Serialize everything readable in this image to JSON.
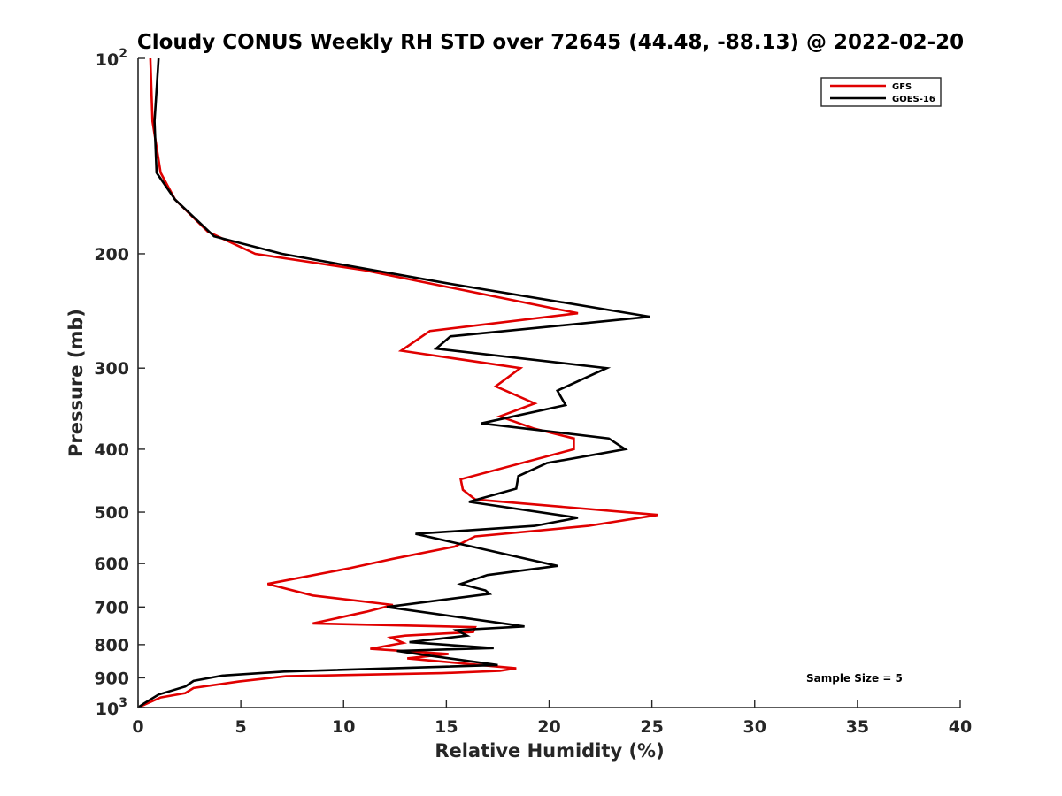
{
  "chart_data": {
    "type": "line",
    "title": "Cloudy CONUS Weekly RH STD over 72645 (44.48, -88.13) @ 2022-02-20",
    "xlabel": "Relative Humidity (%)",
    "ylabel": "Pressure (mb)",
    "xlim": [
      0,
      40
    ],
    "ylim": [
      100,
      1000
    ],
    "y_scale": "log",
    "y_reversed": true,
    "grid": false,
    "legend_position": "top-right",
    "x_ticks": [
      "0",
      "5",
      "10",
      "15",
      "20",
      "25",
      "30",
      "35",
      "40"
    ],
    "y_ticks": [
      {
        "value": 100,
        "base": "10",
        "exp": "2"
      },
      {
        "value": 200,
        "label": "200"
      },
      {
        "value": 300,
        "label": "300"
      },
      {
        "value": 400,
        "label": "400"
      },
      {
        "value": 500,
        "label": "500"
      },
      {
        "value": 600,
        "label": "600"
      },
      {
        "value": 700,
        "label": "700"
      },
      {
        "value": 800,
        "label": "800"
      },
      {
        "value": 900,
        "label": "900"
      },
      {
        "value": 1000,
        "base": "10",
        "exp": "3"
      }
    ],
    "annotation": "Sample Size = 5",
    "series": [
      {
        "name": "GFS",
        "color": "#e00000",
        "points": [
          [
            0.6,
            100
          ],
          [
            0.7,
            125
          ],
          [
            1.1,
            150
          ],
          [
            1.8,
            165
          ],
          [
            3.4,
            185
          ],
          [
            5.7,
            200
          ],
          [
            11.0,
            212
          ],
          [
            21.4,
            247
          ],
          [
            14.2,
            263
          ],
          [
            12.8,
            282
          ],
          [
            18.6,
            300
          ],
          [
            17.4,
            320
          ],
          [
            19.3,
            340
          ],
          [
            17.6,
            356
          ],
          [
            19.3,
            372
          ],
          [
            21.2,
            385
          ],
          [
            21.2,
            400
          ],
          [
            15.7,
            445
          ],
          [
            15.8,
            462
          ],
          [
            16.4,
            478
          ],
          [
            25.3,
            505
          ],
          [
            21.9,
            525
          ],
          [
            16.4,
            545
          ],
          [
            15.4,
            565
          ],
          [
            12.4,
            590
          ],
          [
            10.3,
            610
          ],
          [
            6.3,
            645
          ],
          [
            8.5,
            672
          ],
          [
            12.4,
            695
          ],
          [
            11.1,
            712
          ],
          [
            8.5,
            742
          ],
          [
            16.4,
            752
          ],
          [
            16.3,
            765
          ],
          [
            13.0,
            775
          ],
          [
            12.3,
            780
          ],
          [
            12.9,
            795
          ],
          [
            11.3,
            812
          ],
          [
            15.1,
            827
          ],
          [
            13.1,
            840
          ],
          [
            14.5,
            848
          ],
          [
            18.4,
            870
          ],
          [
            17.6,
            878
          ],
          [
            14.8,
            885
          ],
          [
            7.2,
            895
          ],
          [
            4.9,
            912
          ],
          [
            2.7,
            933
          ],
          [
            2.3,
            950
          ],
          [
            1.1,
            965
          ],
          [
            0,
            1000
          ]
        ]
      },
      {
        "name": "GOES-16",
        "color": "#000000",
        "points": [
          [
            1.0,
            100
          ],
          [
            0.8,
            125
          ],
          [
            0.9,
            150
          ],
          [
            1.8,
            165
          ],
          [
            3.7,
            188
          ],
          [
            7.0,
            200
          ],
          [
            15.0,
            222
          ],
          [
            24.9,
            250
          ],
          [
            15.2,
            268
          ],
          [
            14.5,
            280
          ],
          [
            22.8,
            300
          ],
          [
            20.4,
            325
          ],
          [
            20.8,
            342
          ],
          [
            16.7,
            365
          ],
          [
            22.9,
            385
          ],
          [
            23.7,
            400
          ],
          [
            19.9,
            420
          ],
          [
            18.5,
            440
          ],
          [
            18.4,
            460
          ],
          [
            16.1,
            482
          ],
          [
            21.4,
            510
          ],
          [
            19.3,
            525
          ],
          [
            13.5,
            540
          ],
          [
            20.4,
            605
          ],
          [
            17.0,
            625
          ],
          [
            15.7,
            645
          ],
          [
            16.9,
            660
          ],
          [
            17.1,
            668
          ],
          [
            12.1,
            700
          ],
          [
            18.8,
            750
          ],
          [
            15.5,
            760
          ],
          [
            16.0,
            775
          ],
          [
            13.2,
            793
          ],
          [
            17.3,
            810
          ],
          [
            12.6,
            818
          ],
          [
            13.7,
            828
          ],
          [
            17.5,
            860
          ],
          [
            7.1,
            880
          ],
          [
            4.1,
            893
          ],
          [
            2.7,
            910
          ],
          [
            2.3,
            928
          ],
          [
            1.0,
            955
          ],
          [
            0.3,
            985
          ],
          [
            0,
            1000
          ]
        ]
      }
    ]
  }
}
